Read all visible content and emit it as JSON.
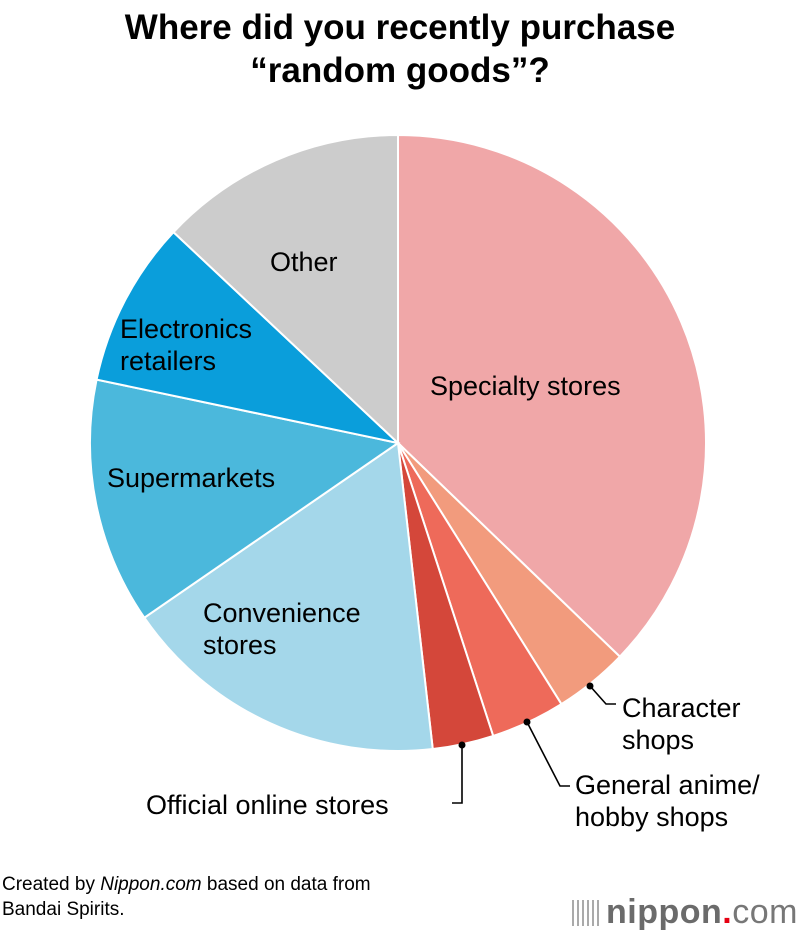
{
  "title_line1": "Where did you recently purchase",
  "title_line2": "“random goods”?",
  "chart_data": {
    "type": "pie",
    "title": "Where did you recently purchase “random goods”?",
    "start": "top, clockwise",
    "slices": [
      {
        "label": "Specialty stores",
        "value": 37.2,
        "color": "#f0a7a8"
      },
      {
        "label": "Character shops",
        "value": 3.9,
        "color": "#f29b7d"
      },
      {
        "label": "General anime/ hobby shops",
        "value": 3.9,
        "color": "#ee6a5a"
      },
      {
        "label": "Official online stores",
        "value": 3.2,
        "color": "#d4473a"
      },
      {
        "label": "Convenience stores",
        "value": 17.2,
        "color": "#a4d7ea"
      },
      {
        "label": "Supermarkets",
        "value": 12.9,
        "color": "#4bb8dc"
      },
      {
        "label": "Electronics retailers",
        "value": 8.7,
        "color": "#0a9edb"
      },
      {
        "label": "Other",
        "value": 13.0,
        "color": "#cccccc"
      }
    ]
  },
  "labels": {
    "specialty": "Specialty stores",
    "character_1": "Character",
    "character_2": "shops",
    "anime_1": "General anime/",
    "anime_2": "hobby shops",
    "online": "Official online stores",
    "convenience_1": "Convenience",
    "convenience_2": "stores",
    "supermarkets": "Supermarkets",
    "electronics_1": "Electronics",
    "electronics_2": "retailers",
    "other": "Other"
  },
  "footer": {
    "prefix": "Created by ",
    "source_site": "Nippon.com",
    "suffix": " based on data from",
    "line2": "Bandai Spirits."
  },
  "logo": {
    "name": "nippon",
    "dot": ".",
    "tld": "com"
  }
}
